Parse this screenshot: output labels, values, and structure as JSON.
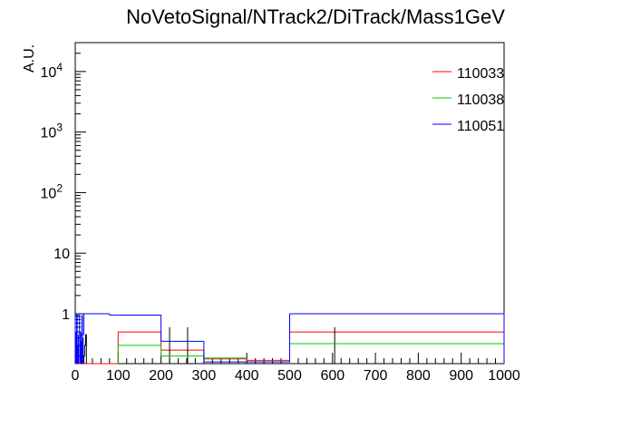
{
  "chart_data": {
    "type": "line",
    "title": "NoVetoSignal/NTrack2/DiTrack/Mass1GeV",
    "xlabel": "",
    "ylabel": "A.U.",
    "xlim": [
      0,
      1000
    ],
    "ylim": [
      0.15,
      30000
    ],
    "yscale": "log",
    "grid": false,
    "legend_position": "top-right",
    "x_ticks": [
      "0",
      "100",
      "200",
      "300",
      "400",
      "500",
      "600",
      "700",
      "800",
      "900",
      "1000"
    ],
    "y_ticks": [
      {
        "value": 1,
        "label": "1"
      },
      {
        "value": 10,
        "label": "10"
      },
      {
        "value": 100,
        "label": "10",
        "exp": "2"
      },
      {
        "value": 1000,
        "label": "10",
        "exp": "3"
      },
      {
        "value": 10000,
        "label": "10",
        "exp": "4"
      }
    ],
    "series": [
      {
        "name": "110033",
        "color": "#ff0000",
        "segments": [
          [
            0,
            100,
            0.0
          ],
          [
            100,
            200,
            0.5
          ],
          [
            200,
            300,
            0.25
          ],
          [
            300,
            400,
            0.18
          ],
          [
            400,
            500,
            0.17
          ],
          [
            500,
            1000,
            0.5
          ]
        ],
        "errors": [
          [
            220,
            0.6
          ],
          [
            262,
            0.6
          ],
          [
            605,
            0.6
          ]
        ]
      },
      {
        "name": "110038",
        "color": "#00cc00",
        "segments": [
          [
            100,
            200,
            0.3
          ],
          [
            200,
            300,
            0.2
          ],
          [
            300,
            400,
            0.185
          ],
          [
            500,
            1000,
            0.32
          ]
        ],
        "errors": []
      },
      {
        "name": "110051",
        "color": "#0000ff",
        "segments": [
          [
            0,
            10,
            0.95
          ],
          [
            10,
            20,
            0.45
          ],
          [
            20,
            80,
            1.0
          ],
          [
            80,
            100,
            0.95
          ],
          [
            100,
            200,
            0.95
          ],
          [
            200,
            300,
            0.35
          ],
          [
            300,
            400,
            0.16
          ],
          [
            400,
            500,
            0.16
          ],
          [
            500,
            1000,
            1.0
          ]
        ],
        "spikes": [
          [
            2,
            0.5
          ],
          [
            4,
            0.95
          ],
          [
            6,
            0.3
          ],
          [
            8,
            0.45
          ],
          [
            12,
            0.5
          ],
          [
            14,
            0.35
          ],
          [
            16,
            0.95
          ],
          [
            18,
            0.4
          ]
        ],
        "errors": []
      }
    ]
  }
}
